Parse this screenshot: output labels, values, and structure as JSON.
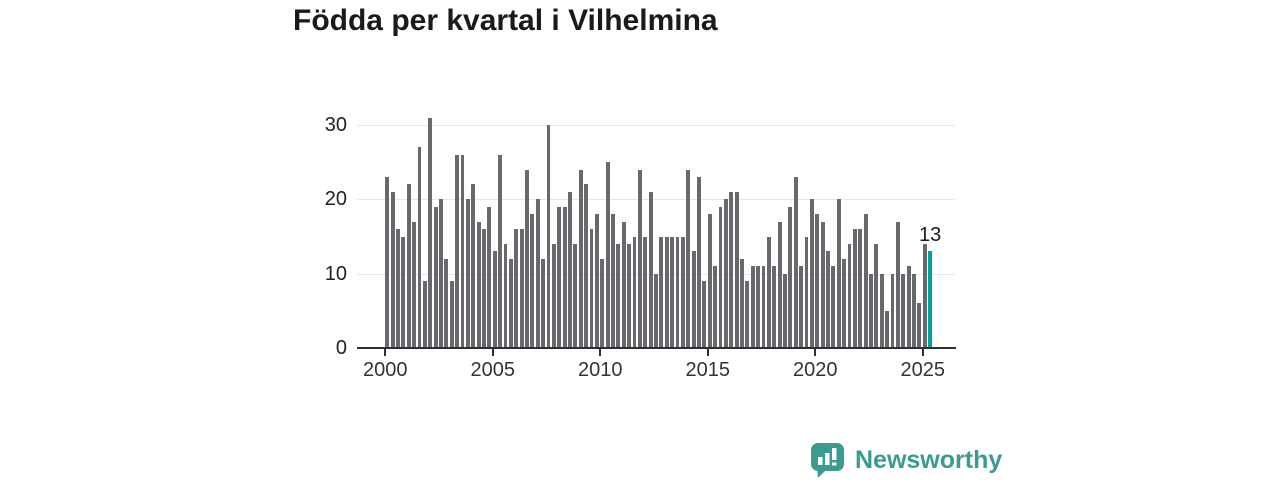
{
  "title": "Födda per kvartal i Vilhelmina",
  "chart_data": {
    "type": "bar",
    "title": "Födda per kvartal i Vilhelmina",
    "x_axis": {
      "unit": "quarter",
      "start": "2000-Q1",
      "end": "2025-Q2",
      "tick_years": [
        2000,
        2005,
        2010,
        2015,
        2020,
        2025
      ]
    },
    "y_axis": {
      "ticks": [
        0,
        10,
        20,
        30
      ],
      "range": [
        0,
        31
      ],
      "grid": true
    },
    "values": [
      23,
      21,
      16,
      15,
      22,
      17,
      27,
      9,
      31,
      19,
      20,
      12,
      9,
      26,
      26,
      20,
      22,
      17,
      16,
      19,
      13,
      26,
      14,
      12,
      16,
      16,
      24,
      18,
      20,
      12,
      30,
      14,
      19,
      19,
      21,
      14,
      24,
      22,
      16,
      18,
      12,
      25,
      18,
      14,
      17,
      14,
      15,
      24,
      15,
      21,
      10,
      15,
      15,
      15,
      15,
      15,
      24,
      13,
      23,
      9,
      18,
      11,
      19,
      20,
      21,
      21,
      12,
      9,
      11,
      11,
      11,
      15,
      11,
      17,
      10,
      19,
      23,
      11,
      15,
      20,
      18,
      17,
      13,
      11,
      20,
      12,
      14,
      16,
      16,
      18,
      10,
      14,
      10,
      5,
      10,
      17,
      10,
      11,
      10,
      6,
      14,
      13
    ],
    "highlight": {
      "index": 101,
      "value": 13,
      "label": "13"
    },
    "bar_color": "#68686d",
    "highlight_color": "#00a49e",
    "gridline_color": "#e7e7e7",
    "axis_color": "#2f2f2f",
    "legend_position": "none"
  },
  "logo": {
    "text": "Newsworthy",
    "color": "#3a9c90",
    "icon": "bar-chart-speech-bubble"
  }
}
